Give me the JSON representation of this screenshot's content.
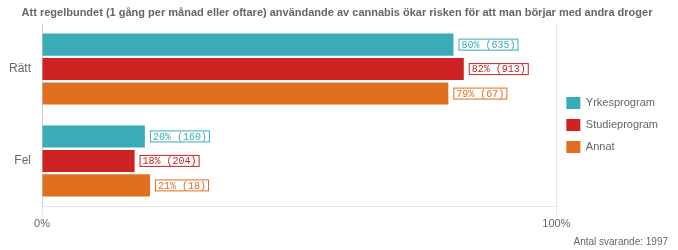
{
  "chart_data": {
    "type": "bar",
    "orientation": "horizontal",
    "title": "Att regelbundet (1 gång per månad eller oftare) användande av cannabis ökar risken för att man börjar med andra droger",
    "annotations": [
      "Antal svarande: 1997"
    ],
    "categories": [
      "Rätt",
      "Fel"
    ],
    "series": [
      {
        "name": "Yrkesprogram",
        "color": "#3aacb8",
        "values": [
          80,
          20
        ],
        "value_labels": [
          "80% (635)",
          "20% (160)"
        ]
      },
      {
        "name": "Studieprogram",
        "color": "#cc2222",
        "values": [
          82,
          18
        ],
        "value_labels": [
          "82% (913)",
          "18% (204)"
        ]
      },
      {
        "name": "Annat",
        "color": "#e07020",
        "values": [
          79,
          21
        ],
        "value_labels": [
          "79% (67)",
          "21% (18)"
        ]
      }
    ],
    "xlim": [
      0,
      100
    ],
    "xticks": [
      {
        "value": 0,
        "label": "0%"
      },
      {
        "value": 100,
        "label": "100%"
      }
    ],
    "grid": true,
    "legend": "right",
    "data_labels": true
  }
}
